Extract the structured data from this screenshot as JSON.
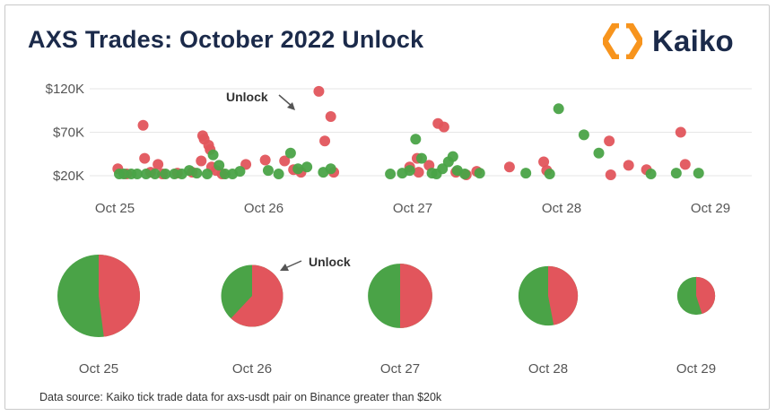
{
  "title": "AXS Trades: October 2022 Unlock",
  "logo": {
    "text": "Kaiko",
    "icon": "kaiko-logo-icon"
  },
  "colors": {
    "buy": "#4aa347",
    "sell": "#e2555c",
    "title": "#1b2a4a",
    "logo_orange": "#f7941d"
  },
  "source": "Data source: Kaiko tick trade data for axs-usdt pair on Binance greater than $20k",
  "chart_data": [
    {
      "type": "scatter",
      "title": "",
      "xlabel": "",
      "ylabel": "",
      "x_ticks": [
        "Oct 25",
        "Oct 26",
        "Oct 27",
        "Oct 28",
        "Oct 29"
      ],
      "y_ticks": [
        "$20K",
        "$70K",
        "$120K"
      ],
      "ylim": [
        20000,
        120000
      ],
      "annotation": "Unlock",
      "series": [
        {
          "color": "#e2555c",
          "points": [
            [
              25.02,
              28000
            ],
            [
              25.08,
              22000
            ],
            [
              25.19,
              78000
            ],
            [
              25.2,
              40000
            ],
            [
              25.24,
              24000
            ],
            [
              25.29,
              33000
            ],
            [
              25.32,
              22000
            ],
            [
              25.42,
              23000
            ],
            [
              25.52,
              24000
            ],
            [
              25.58,
              37000
            ],
            [
              25.59,
              66000
            ],
            [
              25.6,
              62000
            ],
            [
              25.63,
              55000
            ],
            [
              25.64,
              50000
            ],
            [
              25.65,
              30000
            ],
            [
              25.68,
              26000
            ],
            [
              25.72,
              22000
            ],
            [
              25.88,
              33000
            ],
            [
              26.01,
              38000
            ],
            [
              26.14,
              37000
            ],
            [
              26.2,
              27000
            ],
            [
              26.25,
              24000
            ],
            [
              26.37,
              117000
            ],
            [
              26.41,
              60000
            ],
            [
              26.45,
              88000
            ],
            [
              26.47,
              24000
            ],
            [
              26.98,
              30000
            ],
            [
              27.03,
              40000
            ],
            [
              27.04,
              24000
            ],
            [
              27.11,
              32000
            ],
            [
              27.17,
              80000
            ],
            [
              27.21,
              76000
            ],
            [
              27.29,
              24000
            ],
            [
              27.36,
              21000
            ],
            [
              27.43,
              25000
            ],
            [
              27.65,
              30000
            ],
            [
              27.88,
              36000
            ],
            [
              27.9,
              26000
            ],
            [
              28.32,
              60000
            ],
            [
              28.33,
              21000
            ],
            [
              28.45,
              32000
            ],
            [
              28.57,
              27000
            ],
            [
              28.8,
              70000
            ],
            [
              28.83,
              33000
            ]
          ]
        },
        {
          "color": "#4aa347",
          "points": [
            [
              25.03,
              22000
            ],
            [
              25.06,
              22000
            ],
            [
              25.11,
              22000
            ],
            [
              25.15,
              22000
            ],
            [
              25.21,
              22000
            ],
            [
              25.27,
              22000
            ],
            [
              25.34,
              22000
            ],
            [
              25.4,
              22000
            ],
            [
              25.45,
              22000
            ],
            [
              25.5,
              26000
            ],
            [
              25.55,
              23000
            ],
            [
              25.62,
              22000
            ],
            [
              25.66,
              44000
            ],
            [
              25.7,
              32000
            ],
            [
              25.74,
              22000
            ],
            [
              25.79,
              22000
            ],
            [
              25.84,
              25000
            ],
            [
              26.03,
              26000
            ],
            [
              26.1,
              22000
            ],
            [
              26.18,
              46000
            ],
            [
              26.23,
              28000
            ],
            [
              26.29,
              30000
            ],
            [
              26.4,
              24000
            ],
            [
              26.45,
              28000
            ],
            [
              26.85,
              22000
            ],
            [
              26.93,
              23000
            ],
            [
              26.98,
              26000
            ],
            [
              27.02,
              62000
            ],
            [
              27.06,
              40000
            ],
            [
              27.13,
              23000
            ],
            [
              27.16,
              22000
            ],
            [
              27.2,
              28000
            ],
            [
              27.24,
              36000
            ],
            [
              27.27,
              42000
            ],
            [
              27.3,
              26000
            ],
            [
              27.35,
              22000
            ],
            [
              27.45,
              23000
            ],
            [
              27.76,
              23000
            ],
            [
              27.92,
              22000
            ],
            [
              27.98,
              97000
            ],
            [
              28.15,
              67000
            ],
            [
              28.25,
              46000
            ],
            [
              28.6,
              22000
            ],
            [
              28.77,
              23000
            ],
            [
              28.92,
              23000
            ]
          ]
        }
      ]
    },
    {
      "type": "pie",
      "title": "",
      "annotation": "Unlock",
      "categories": [
        "Oct 25",
        "Oct 26",
        "Oct 27",
        "Oct 28",
        "Oct 29"
      ],
      "sell_share": [
        0.48,
        0.62,
        0.5,
        0.47,
        0.45
      ],
      "relative_volume": [
        1.0,
        0.75,
        0.78,
        0.72,
        0.46
      ]
    }
  ]
}
